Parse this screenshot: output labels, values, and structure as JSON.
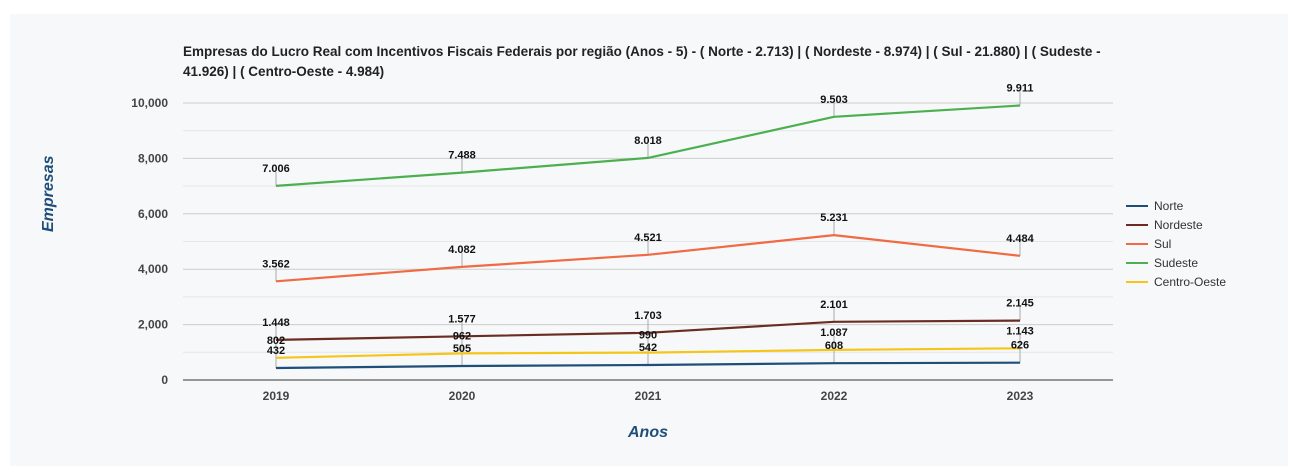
{
  "chart_data": {
    "type": "line",
    "title": "Empresas do Lucro Real com Incentivos Fiscais Federais por região (Anos - 5) - ( Norte - 2.713) | ( Nordeste - 8.974) | ( Sul - 21.880) | ( Sudeste - 41.926) | ( Centro-Oeste - 4.984)",
    "xlabel": "Anos",
    "ylabel": "Empresas",
    "categories": [
      "2019",
      "2020",
      "2021",
      "2022",
      "2023"
    ],
    "ylim": [
      0,
      10000
    ],
    "yticks": [
      0,
      2000,
      4000,
      6000,
      8000,
      10000
    ],
    "ytick_labels": [
      "0",
      "2,000",
      "4,000",
      "6,000",
      "8,000",
      "10,000"
    ],
    "grid": true,
    "legend_position": "right",
    "series": [
      {
        "name": "Norte",
        "color": "#1f4e79",
        "values": [
          432,
          505,
          542,
          608,
          626
        ],
        "labels": [
          "432",
          "505",
          "542",
          "608",
          "626"
        ]
      },
      {
        "name": "Nordeste",
        "color": "#6b2d23",
        "values": [
          1448,
          1577,
          1703,
          2101,
          2145
        ],
        "labels": [
          "1.448",
          "1.577",
          "1.703",
          "2.101",
          "2.145"
        ]
      },
      {
        "name": "Sul",
        "color": "#f06a43",
        "values": [
          3562,
          4082,
          4521,
          5231,
          4484
        ],
        "labels": [
          "3.562",
          "4.082",
          "4.521",
          "5.231",
          "4.484"
        ]
      },
      {
        "name": "Sudeste",
        "color": "#4caf50",
        "values": [
          7006,
          7488,
          8018,
          9503,
          9911
        ],
        "labels": [
          "7.006",
          "7.488",
          "8.018",
          "9.503",
          "9.911"
        ]
      },
      {
        "name": "Centro-Oeste",
        "color": "#f5c518",
        "values": [
          802,
          962,
          990,
          1087,
          1143
        ],
        "labels": [
          "802",
          "962",
          "990",
          "1.087",
          "1.143"
        ]
      }
    ]
  }
}
